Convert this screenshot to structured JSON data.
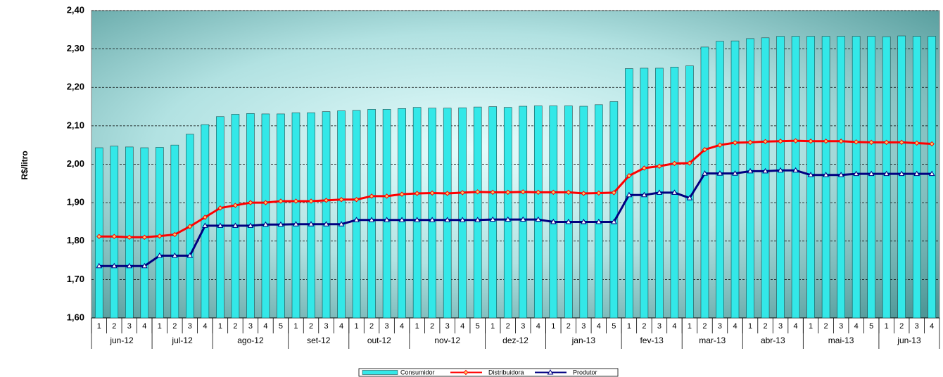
{
  "chart_data": {
    "type": "bar-line",
    "ylabel": "R$/litro",
    "categories": [
      "1",
      "2",
      "3",
      "4",
      "1",
      "2",
      "3",
      "4",
      "1",
      "2",
      "3",
      "4",
      "5",
      "1",
      "2",
      "3",
      "4",
      "1",
      "2",
      "3",
      "4",
      "1",
      "2",
      "3",
      "4",
      "5",
      "1",
      "2",
      "3",
      "4",
      "1",
      "2",
      "3",
      "4",
      "5",
      "1",
      "2",
      "3",
      "4",
      "1",
      "2",
      "3",
      "4",
      "1",
      "2",
      "3",
      "4",
      "1",
      "2",
      "3",
      "4",
      "5",
      "1",
      "2",
      "3",
      "4"
    ],
    "category_groups": [
      "jun-12",
      "jun-12",
      "jun-12",
      "jun-12",
      "jul-12",
      "jul-12",
      "jul-12",
      "jul-12",
      "ago-12",
      "ago-12",
      "ago-12",
      "ago-12",
      "ago-12",
      "set-12",
      "set-12",
      "set-12",
      "set-12",
      "out-12",
      "out-12",
      "out-12",
      "out-12",
      "nov-12",
      "nov-12",
      "nov-12",
      "nov-12",
      "nov-12",
      "dez-12",
      "dez-12",
      "dez-12",
      "dez-12",
      "jan-13",
      "jan-13",
      "jan-13",
      "jan-13",
      "jan-13",
      "fev-13",
      "fev-13",
      "fev-13",
      "fev-13",
      "mar-13",
      "mar-13",
      "mar-13",
      "mar-13",
      "abr-13",
      "abr-13",
      "abr-13",
      "abr-13",
      "mai-13",
      "mai-13",
      "mai-13",
      "mai-13",
      "mai-13",
      "jun-13",
      "jun-13",
      "jun-13",
      "jun-13"
    ],
    "series": [
      {
        "name": "Consumidor",
        "type": "bar",
        "color": "#33e8e8",
        "values": [
          2.043,
          2.047,
          2.045,
          2.043,
          2.044,
          2.05,
          2.078,
          2.103,
          2.124,
          2.13,
          2.132,
          2.131,
          2.131,
          2.134,
          2.134,
          2.137,
          2.139,
          2.14,
          2.143,
          2.143,
          2.145,
          2.148,
          2.146,
          2.146,
          2.147,
          2.149,
          2.15,
          2.148,
          2.151,
          2.152,
          2.152,
          2.152,
          2.151,
          2.155,
          2.163,
          2.249,
          2.25,
          2.25,
          2.253,
          2.256,
          2.305,
          2.32,
          2.321,
          2.327,
          2.329,
          2.333,
          2.333,
          2.333,
          2.333,
          2.333,
          2.333,
          2.333,
          2.332,
          2.334,
          2.333,
          2.333
        ]
      },
      {
        "name": "Distribuidora",
        "type": "line",
        "color": "#ff0000",
        "marker": "diamond",
        "values": [
          1.812,
          1.812,
          1.81,
          1.81,
          1.813,
          1.817,
          1.838,
          1.862,
          1.886,
          1.893,
          1.9,
          1.9,
          1.904,
          1.904,
          1.904,
          1.906,
          1.908,
          1.908,
          1.917,
          1.917,
          1.922,
          1.924,
          1.925,
          1.924,
          1.926,
          1.928,
          1.927,
          1.927,
          1.928,
          1.927,
          1.927,
          1.927,
          1.924,
          1.925,
          1.926,
          1.97,
          1.99,
          1.995,
          2.002,
          2.003,
          2.038,
          2.05,
          2.056,
          2.057,
          2.059,
          2.06,
          2.061,
          2.06,
          2.06,
          2.06,
          2.058,
          2.057,
          2.057,
          2.057,
          2.055,
          2.053
        ]
      },
      {
        "name": "Produtor",
        "type": "line",
        "color": "#000080",
        "marker": "triangle",
        "values": [
          1.735,
          1.735,
          1.735,
          1.735,
          1.762,
          1.762,
          1.762,
          1.84,
          1.84,
          1.84,
          1.84,
          1.843,
          1.843,
          1.844,
          1.844,
          1.844,
          1.844,
          1.855,
          1.855,
          1.855,
          1.855,
          1.855,
          1.855,
          1.855,
          1.855,
          1.855,
          1.856,
          1.856,
          1.856,
          1.856,
          1.85,
          1.85,
          1.85,
          1.85,
          1.85,
          1.92,
          1.92,
          1.926,
          1.926,
          1.912,
          1.976,
          1.976,
          1.976,
          1.982,
          1.982,
          1.984,
          1.984,
          1.972,
          1.972,
          1.972,
          1.975,
          1.975,
          1.975,
          1.975,
          1.975,
          1.975
        ]
      }
    ],
    "ylim": [
      1.6,
      2.4
    ],
    "yticks": [
      {
        "value": 1.6,
        "label": "1,60"
      },
      {
        "value": 1.7,
        "label": "1,70"
      },
      {
        "value": 1.8,
        "label": "1,80"
      },
      {
        "value": 1.9,
        "label": "1,90"
      },
      {
        "value": 2.0,
        "label": "2,00"
      },
      {
        "value": 2.1,
        "label": "2,10"
      },
      {
        "value": 2.2,
        "label": "2,20"
      },
      {
        "value": 2.3,
        "label": "2,30"
      },
      {
        "value": 2.4,
        "label": "2,40"
      }
    ],
    "grid": true,
    "legend": "bottom"
  }
}
